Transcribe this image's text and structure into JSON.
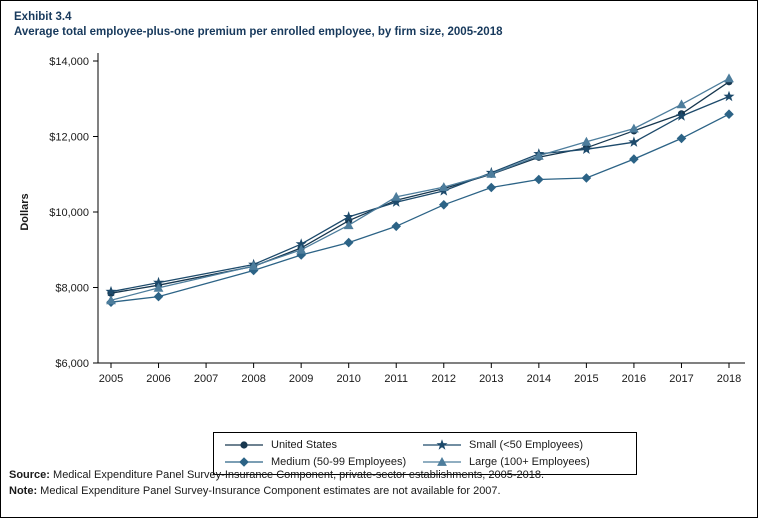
{
  "header": {
    "exhibit": "Exhibit 3.4",
    "title": "Average total employee-plus-one premium per enrolled employee, by firm size, 2005-2018"
  },
  "chart_data": {
    "type": "line",
    "title": "Average total employee-plus-one premium per enrolled employee, by firm size, 2005-2018",
    "xlabel": "",
    "ylabel": "Dollars",
    "ylim": [
      6000,
      14000
    ],
    "yticks": [
      6000,
      8000,
      10000,
      12000,
      14000
    ],
    "ytick_labels": [
      "$6,000",
      "$8,000",
      "$10,000",
      "$12,000",
      "$14,000"
    ],
    "grid": false,
    "legend_position": "bottom",
    "x": [
      2005,
      2006,
      2007,
      2008,
      2009,
      2010,
      2011,
      2012,
      2013,
      2014,
      2015,
      2016,
      2017,
      2018
    ],
    "note": "2007 estimates not available",
    "series": [
      {
        "name": "United States",
        "marker": "circle",
        "color": "#17374f",
        "values": [
          7850,
          8060,
          null,
          8560,
          9050,
          9770,
          10310,
          10620,
          11000,
          11450,
          11700,
          12150,
          12600,
          13450
        ]
      },
      {
        "name": "Medium (50-99 Employees)",
        "marker": "diamond",
        "color": "#2c6386",
        "values": [
          7610,
          7760,
          null,
          8450,
          8860,
          9190,
          9620,
          10190,
          10650,
          10860,
          10900,
          11400,
          11950,
          12590
        ]
      },
      {
        "name": "Small (<50 Employees)",
        "marker": "star",
        "color": "#1d4a6b",
        "values": [
          7890,
          8130,
          null,
          8610,
          9150,
          9870,
          10260,
          10560,
          11040,
          11540,
          11660,
          11850,
          12540,
          13060
        ]
      },
      {
        "name": "Large (100+ Employees)",
        "marker": "triangle",
        "color": "#4d7d9c",
        "values": [
          7660,
          7990,
          null,
          8570,
          9000,
          9650,
          10400,
          10660,
          11010,
          11490,
          11860,
          12210,
          12850,
          13540
        ]
      }
    ]
  },
  "footer": {
    "source_label": "Source:",
    "source_text": "Medical Expenditure Panel Survey-Insurance Component, private-sector establishments, 2005-2018.",
    "note_label": "Note:",
    "note_text": "Medical Expenditure Panel Survey-Insurance Component estimates are not available for 2007."
  }
}
